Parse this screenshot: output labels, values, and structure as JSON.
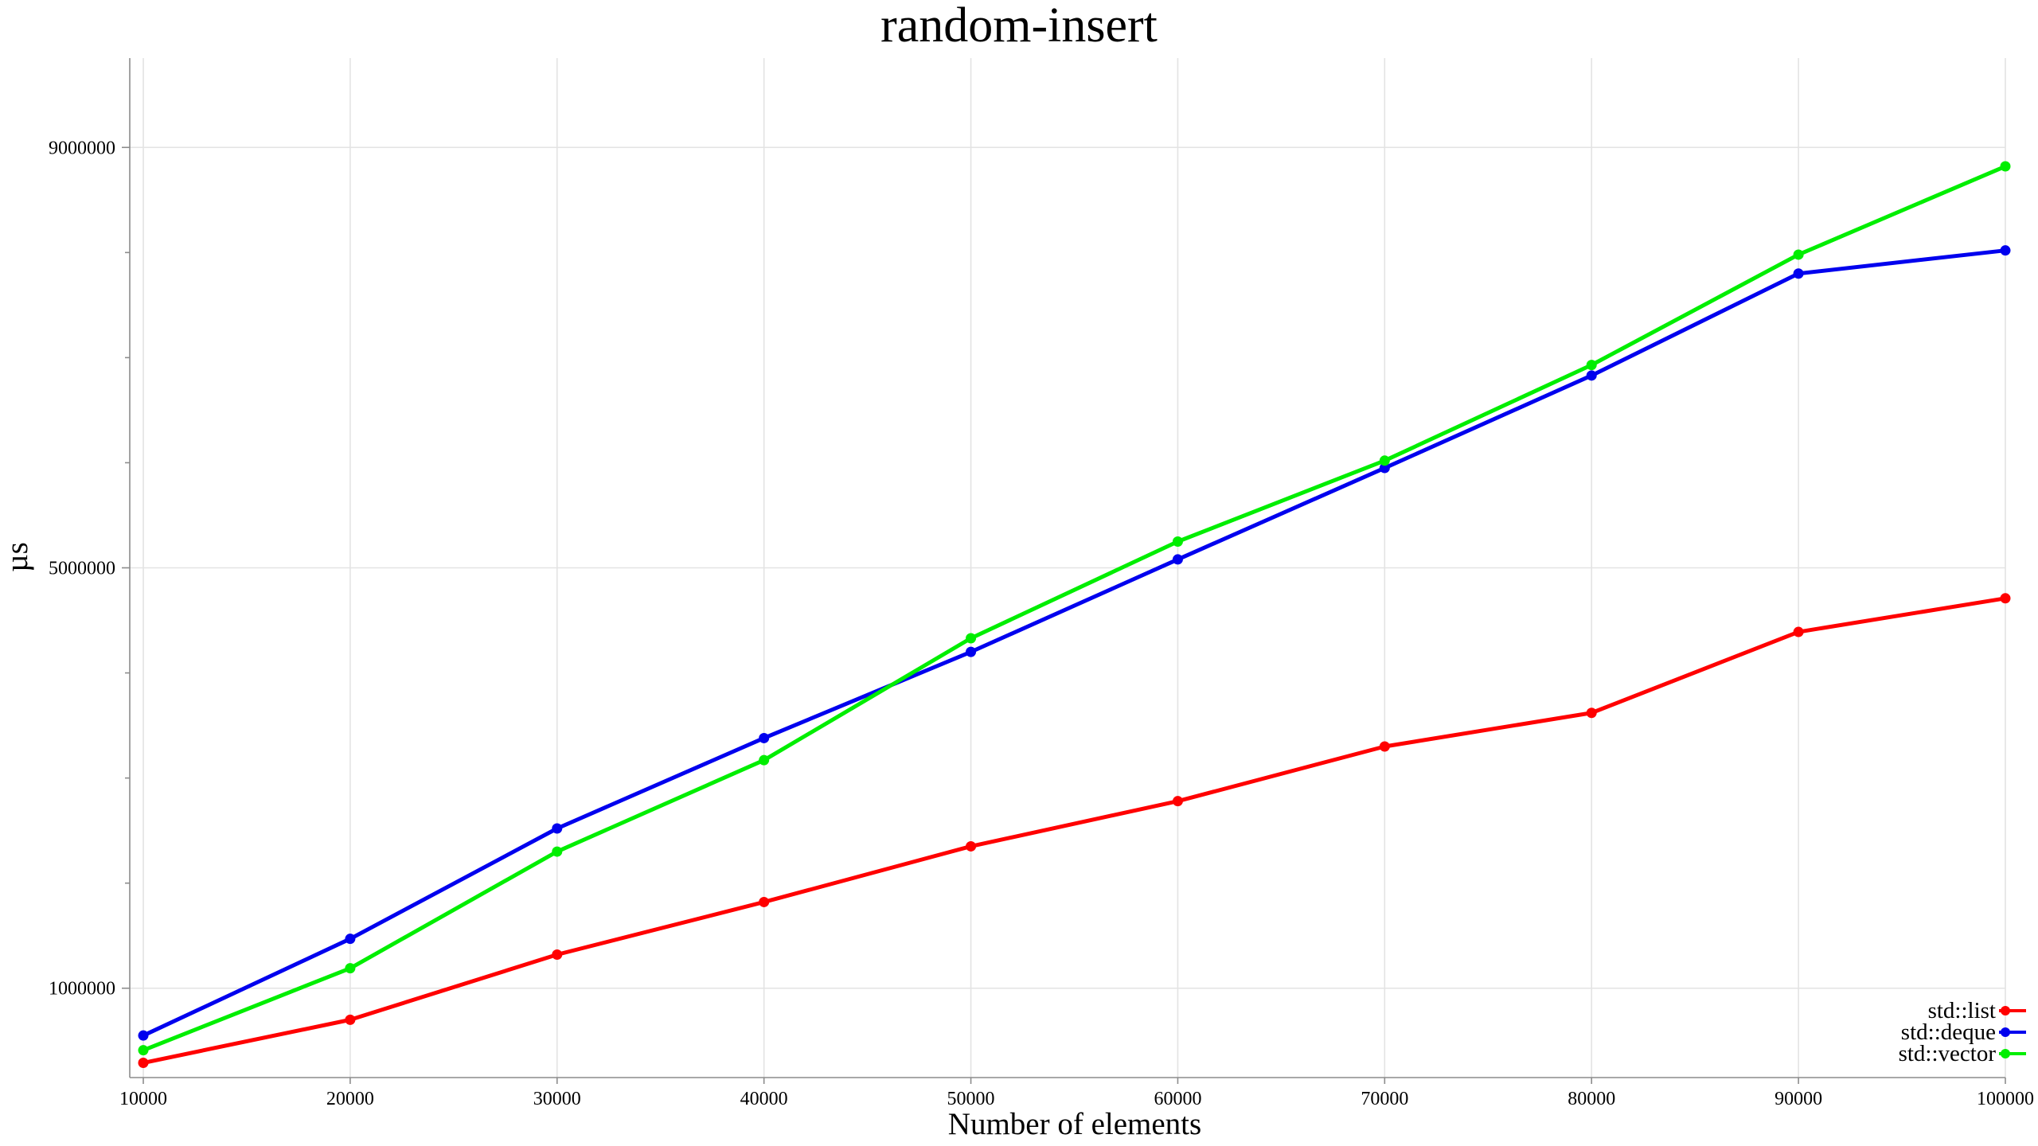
{
  "chart_data": {
    "type": "line",
    "title": "random-insert",
    "xlabel": "Number of elements",
    "ylabel": "µs",
    "x": [
      10000,
      20000,
      30000,
      40000,
      50000,
      60000,
      70000,
      80000,
      90000,
      100000
    ],
    "x_tick_labels": [
      "10000",
      "20000",
      "30000",
      "40000",
      "50000",
      "60000",
      "70000",
      "80000",
      "90000",
      "100000"
    ],
    "xlim": [
      10000,
      100000
    ],
    "ylim": [
      150000,
      9850000
    ],
    "y_major_ticks": [
      1000000,
      5000000,
      9000000
    ],
    "y_major_tick_labels": [
      "1000000",
      "5000000",
      "9000000"
    ],
    "y_minor_ticks": [
      2000000,
      3000000,
      4000000,
      6000000,
      7000000,
      8000000
    ],
    "grid": true,
    "legend_position": "bottom-right",
    "series": [
      {
        "name": "std::list",
        "color": "#ff0000",
        "values": [
          290000,
          700000,
          1320000,
          1820000,
          2350000,
          2780000,
          3300000,
          3620000,
          4390000,
          4710000
        ]
      },
      {
        "name": "std::deque",
        "color": "#0000ee",
        "values": [
          550000,
          1470000,
          2520000,
          3380000,
          4200000,
          5080000,
          5950000,
          6830000,
          7800000,
          8020000
        ]
      },
      {
        "name": "std::vector",
        "color": "#00ee00",
        "values": [
          410000,
          1190000,
          2300000,
          3170000,
          4330000,
          5250000,
          6020000,
          6930000,
          7980000,
          8820000
        ]
      }
    ]
  }
}
